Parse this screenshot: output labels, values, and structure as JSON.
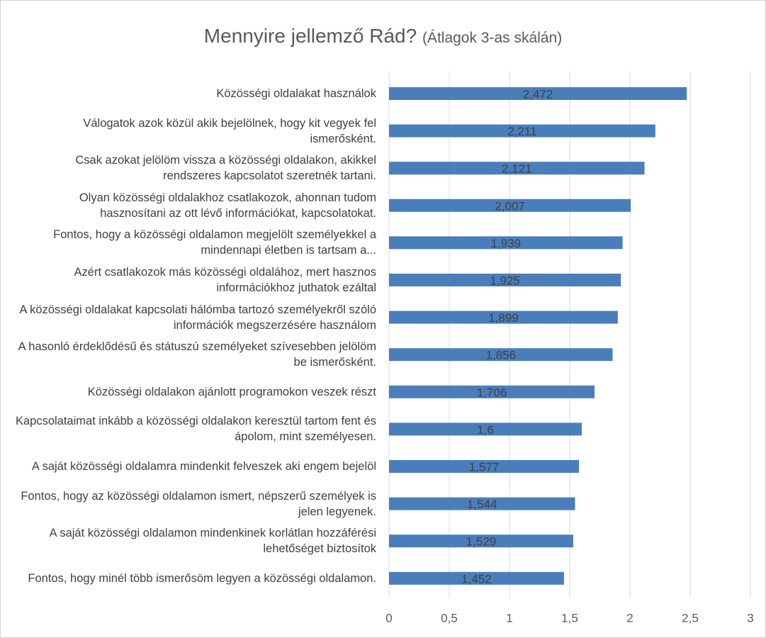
{
  "chart_data": {
    "type": "hbar",
    "title": "Mennyire jellemző Rád?",
    "subtitle": "(Átlagok 3-as skálán)",
    "categories": [
      "Közösségi oldalakat használok",
      "Válogatok azok közül akik bejelölnek, hogy kit vegyek fel ismerősként.",
      "Csak azokat jelölöm vissza a közösségi oldalakon, akikkel rendszeres kapcsolatot szeretnék tartani.",
      "Olyan közösségi oldalakhoz csatlakozok, ahonnan tudom hasznosítani az ott lévő információkat, kapcsolatokat.",
      "Fontos, hogy a közösségi oldalamon megjelölt személyekkel a mindennapi életben is tartsam a...",
      "Azért csatlakozok más közösségi oldalához, mert hasznos információkhoz juthatok ezáltal",
      "A közösségi oldalakat kapcsolati hálómba tartozó személyekről szóló információk megszerzésére használom",
      "A hasonló érdeklődésű és státuszú személyeket szívesebben jelölöm be ismerősként.",
      "Közösségi oldalakon ajánlott programokon veszek részt",
      "Kapcsolataimat inkább a közösségi oldalakon keresztül tartom fent és ápolom, mint személyesen.",
      "A saját közösségi oldalamra mindenkit felveszek aki engem bejelöl",
      "Fontos, hogy az közösségi oldalamon ismert, népszerű személyek is jelen legyenek.",
      "A saját közösségi oldalamon mindenkinek korlátlan hozzáférési lehetőséget biztosítok",
      "Fontos, hogy minél több ismerősöm legyen a közösségi oldalamon."
    ],
    "values": [
      2.472,
      2.211,
      2.121,
      2.007,
      1.939,
      1.925,
      1.899,
      1.856,
      1.706,
      1.6,
      1.577,
      1.544,
      1.529,
      1.452
    ],
    "value_labels": [
      "2,472",
      "2,211",
      "2,121",
      "2,007",
      "1,939",
      "1,925",
      "1,899",
      "1,856",
      "1,706",
      "1,6",
      "1,577",
      "1,544",
      "1,529",
      "1,452"
    ],
    "color": "#4a7ebb",
    "xlim": [
      0,
      3
    ],
    "xticks": [
      0,
      {
        "value": 0.5,
        "label": "0,5"
      },
      1,
      {
        "value": 1.5,
        "label": "1,5"
      },
      2,
      {
        "value": 2.5,
        "label": "2,5"
      },
      3
    ],
    "grid": true
  }
}
